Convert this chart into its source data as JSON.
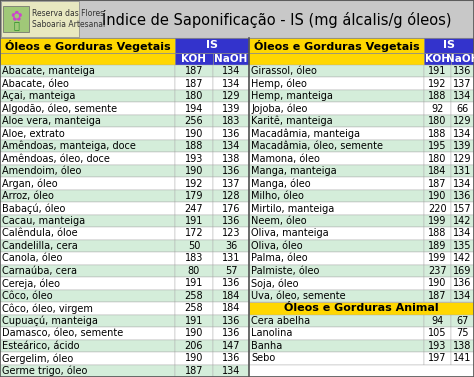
{
  "title": "Índice de Saponificação - IS (mg álcalis/g óleos)",
  "col1_header": "Óleos e Gorduras Vegetais",
  "col2_header": "IS",
  "col3_header": "Óleos e Gorduras Vegetais",
  "col4_header": "IS",
  "subheader_koh": "KOH",
  "subheader_naoh": "NaOH",
  "left_data": [
    [
      "Abacate, manteiga",
      "187",
      "134"
    ],
    [
      "Abacate, óleo",
      "187",
      "134"
    ],
    [
      "Açai, manteiga",
      "180",
      "129"
    ],
    [
      "Algodão, óleo, semente",
      "194",
      "139"
    ],
    [
      "Aloe vera, manteiga",
      "256",
      "183"
    ],
    [
      "Aloe, extrato",
      "190",
      "136"
    ],
    [
      "Amêndoas, manteiga, doce",
      "188",
      "134"
    ],
    [
      "Amêndoas, óleo, doce",
      "193",
      "138"
    ],
    [
      "Amendoim, óleo",
      "190",
      "136"
    ],
    [
      "Argan, óleo",
      "192",
      "137"
    ],
    [
      "Arroz, óleo",
      "179",
      "128"
    ],
    [
      "Babaçú, óleo",
      "247",
      "176"
    ],
    [
      "Cacau, manteiga",
      "191",
      "136"
    ],
    [
      "Calêndula, óloe",
      "172",
      "123"
    ],
    [
      "Candelilla, cera",
      "50",
      "36"
    ],
    [
      "Canola, óleo",
      "183",
      "131"
    ],
    [
      "Carnaúba, cera",
      "80",
      "57"
    ],
    [
      "Cereja, óleo",
      "191",
      "136"
    ],
    [
      "Côco, óleo",
      "258",
      "184"
    ],
    [
      "Côco, óleo, virgem",
      "258",
      "184"
    ],
    [
      "Cupuaçú, manteiga",
      "191",
      "136"
    ],
    [
      "Damasco, óleo, semente",
      "190",
      "136"
    ],
    [
      "Esteárico, ácido",
      "206",
      "147"
    ],
    [
      "Gergelim, óleo",
      "190",
      "136"
    ],
    [
      "Germe trigo, óleo",
      "187",
      "134"
    ]
  ],
  "right_veg_data": [
    [
      "Girassol, óleo",
      "191",
      "136"
    ],
    [
      "Hemp, óleo",
      "192",
      "137"
    ],
    [
      "Hemp, manteiga",
      "188",
      "134"
    ],
    [
      "Jojoba, óleo",
      "92",
      "66"
    ],
    [
      "Karitê, manteiga",
      "180",
      "129"
    ],
    [
      "Macadâmia, manteiga",
      "188",
      "134"
    ],
    [
      "Macadâmia, óleo, semente",
      "195",
      "139"
    ],
    [
      "Mamona, óleo",
      "180",
      "129"
    ],
    [
      "Manga, manteiga",
      "184",
      "131"
    ],
    [
      "Manga, óleo",
      "187",
      "134"
    ],
    [
      "Milho, óleo",
      "190",
      "136"
    ],
    [
      "Mirtilo, manteiga",
      "220",
      "157"
    ],
    [
      "Neem, óleo",
      "199",
      "142"
    ],
    [
      "Oliva, manteiga",
      "188",
      "134"
    ],
    [
      "Oliva, óleo",
      "189",
      "135"
    ],
    [
      "Palma, óleo",
      "199",
      "142"
    ],
    [
      "Palmiste, óleo",
      "237",
      "169"
    ],
    [
      "Soja, óleo",
      "190",
      "136"
    ],
    [
      "Uva, óleo, semente",
      "187",
      "134"
    ]
  ],
  "animal_section_header": "Óleos e Gorduras Animal",
  "right_animal_data": [
    [
      "Cera abelha",
      "94",
      "67"
    ],
    [
      "Lanolina",
      "105",
      "75"
    ],
    [
      "Banha",
      "193",
      "138"
    ],
    [
      "Sebo",
      "197",
      "141"
    ]
  ],
  "title_bg": "#c8c8c8",
  "logo_outer_bg": "#f0f0a0",
  "logo_inner_bg": "#90EE90",
  "col_header_bg": "#ffd700",
  "subheader_bg": "#3333cc",
  "subheader_text": "#ffffff",
  "row_even_bg": "#ffffff",
  "row_odd_bg": "#d4edda",
  "animal_header_bg": "#ffd700",
  "grid_color": "#aaaaaa",
  "title_color": "#000000",
  "title_fontsize": 10.5,
  "header_fontsize": 8.0,
  "subheader_fontsize": 7.5,
  "cell_fontsize": 7.0
}
